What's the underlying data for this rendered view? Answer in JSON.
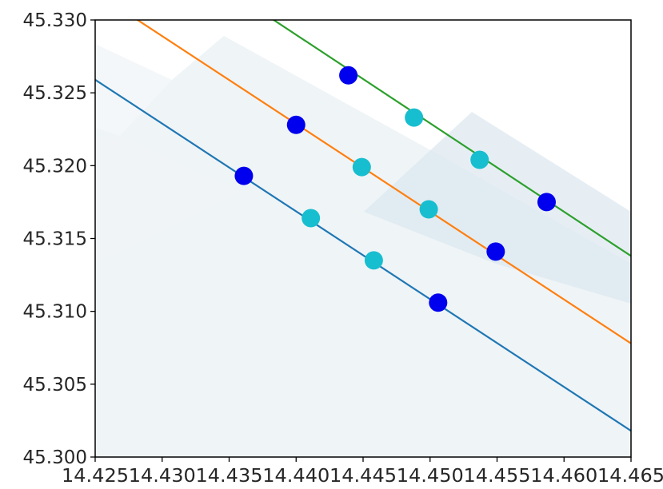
{
  "chart_data": {
    "type": "scatter",
    "title": "",
    "xlabel": "",
    "ylabel": "",
    "xlim": [
      14.425,
      14.465
    ],
    "ylim": [
      45.3,
      45.33
    ],
    "grid": false,
    "xticks": [
      "14.425",
      "14.430",
      "14.435",
      "14.440",
      "14.445",
      "14.450",
      "14.455",
      "14.460",
      "14.465"
    ],
    "yticks": [
      "45.300",
      "45.305",
      "45.310",
      "45.315",
      "45.320",
      "45.325",
      "45.330"
    ],
    "lines": [
      {
        "color": "#1f77b4",
        "x": [
          14.425,
          14.465
        ],
        "y": [
          45.3259,
          45.3018
        ]
      },
      {
        "color": "#ff7f0e",
        "x": [
          14.428,
          14.465
        ],
        "y": [
          45.3301,
          45.3078
        ]
      },
      {
        "color": "#2ca02c",
        "x": [
          14.438,
          14.465
        ],
        "y": [
          45.3302,
          45.3138
        ]
      }
    ],
    "points": [
      {
        "x": 14.4361,
        "y": 45.3193,
        "color": "#0000ee"
      },
      {
        "x": 14.4411,
        "y": 45.3164,
        "color": "#17becf"
      },
      {
        "x": 14.4458,
        "y": 45.3135,
        "color": "#17becf"
      },
      {
        "x": 14.4506,
        "y": 45.3106,
        "color": "#0000ee"
      },
      {
        "x": 14.44,
        "y": 45.3228,
        "color": "#0000ee"
      },
      {
        "x": 14.4449,
        "y": 45.3199,
        "color": "#17becf"
      },
      {
        "x": 14.4499,
        "y": 45.317,
        "color": "#17becf"
      },
      {
        "x": 14.4549,
        "y": 45.3141,
        "color": "#0000ee"
      },
      {
        "x": 14.4439,
        "y": 45.3262,
        "color": "#0000ee"
      },
      {
        "x": 14.4488,
        "y": 45.3233,
        "color": "#17becf"
      },
      {
        "x": 14.4537,
        "y": 45.3204,
        "color": "#17becf"
      },
      {
        "x": 14.4587,
        "y": 45.3175,
        "color": "#0000ee"
      }
    ],
    "background_colors": [
      "#e8eff5",
      "#dbe7f0",
      "#f0f4f7"
    ]
  }
}
